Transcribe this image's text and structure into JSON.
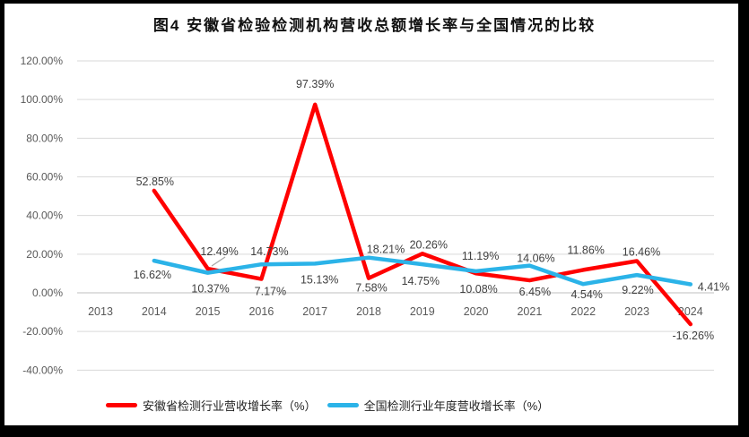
{
  "title": "图4 安徽省检验检测机构营收总额增长率与全国情况的比较",
  "chart_data": {
    "type": "line",
    "title": "图4 安徽省检验检测机构营收总额增长率与全国情况的比较",
    "categories": [
      "2013",
      "2014",
      "2015",
      "2016",
      "2017",
      "2018",
      "2019",
      "2020",
      "2021",
      "2022",
      "2023",
      "2024"
    ],
    "series": [
      {
        "name": "安徽省检测行业营收增长率（%）",
        "color": "#FF0000",
        "values": [
          null,
          52.85,
          12.49,
          7.17,
          97.39,
          7.58,
          20.26,
          10.08,
          6.45,
          11.86,
          16.46,
          -16.26
        ],
        "labels": [
          "",
          "52.85%",
          "12.49%",
          "7.17%",
          "97.39%",
          "7.58%",
          "20.26%",
          "10.08%",
          "6.45%",
          "11.86%",
          "16.46%",
          "-16.26%"
        ]
      },
      {
        "name": "全国检测行业年度营收增长率（%）",
        "color": "#2BB3E8",
        "values": [
          null,
          16.62,
          10.37,
          14.73,
          15.13,
          18.21,
          14.75,
          11.19,
          14.06,
          4.54,
          9.22,
          4.41
        ],
        "labels": [
          "",
          "16.62%",
          "10.37%",
          "14.73%",
          "15.13%",
          "18.21%",
          "14.75%",
          "11.19%",
          "14.06%",
          "4.54%",
          "9.22%",
          "4.41%"
        ]
      }
    ],
    "ylim": [
      -40,
      120
    ],
    "ytick_step": 20,
    "ytick_labels": [
      "120.00%",
      "100.00%",
      "80.00%",
      "60.00%",
      "40.00%",
      "20.00%",
      "0.00%",
      "-20.00%",
      "-40.00%"
    ],
    "grid": "horizontal",
    "gridline_color": "#D9D9D9",
    "zero_axis_color": "#BFBFBF",
    "axis_text_color": "#595959",
    "data_label_color": "#404040",
    "leader_line_color": "#A6A6A6",
    "legend_position": "bottom",
    "data_labels": true
  },
  "legend": {
    "items": [
      {
        "label": "安徽省检测行业营收增长率（%）",
        "color": "#FF0000"
      },
      {
        "label": "全国检测行业年度营收增长率（%）",
        "color": "#2BB3E8"
      }
    ]
  }
}
